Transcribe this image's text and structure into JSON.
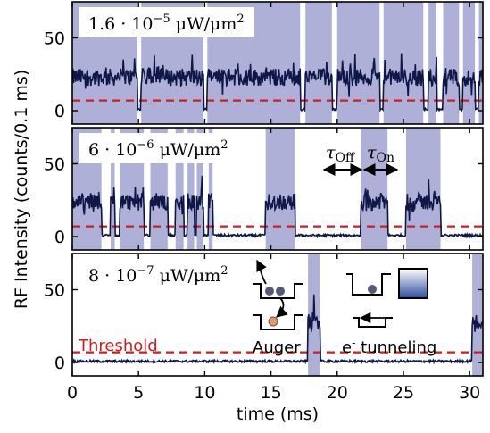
{
  "chart_data": {
    "type": "line",
    "xlabel": "time (ms)",
    "ylabel": "RF Intensity (counts/0.1 ms)",
    "xlim": [
      0,
      31
    ],
    "ylim": [
      0,
      60
    ],
    "xticks": [
      "0",
      "5",
      "10",
      "15",
      "20",
      "25",
      "30"
    ],
    "yticks": [
      "0",
      "50"
    ],
    "threshold": 7,
    "colors": {
      "trace": "#0f1748",
      "shade": "#aeb0d8",
      "threshold": "#cc1f1f",
      "dot_dark": "#555a7a",
      "dot_orange": "#e89a5c",
      "reservoir": "#2d4d9a"
    },
    "panels": [
      {
        "label_base": "1.6 · 10",
        "label_exp": "−5",
        "label_unit": " μW/μm",
        "label_unit_exp": "2",
        "on_segments": [
          [
            0.0,
            4.9
          ],
          [
            5.2,
            9.9
          ],
          [
            10.2,
            17.2
          ],
          [
            17.6,
            19.6
          ],
          [
            20.0,
            23.2
          ],
          [
            23.5,
            26.5
          ],
          [
            26.9,
            27.5
          ],
          [
            28.0,
            29.2
          ],
          [
            29.5,
            30.4
          ],
          [
            30.7,
            31.0
          ]
        ],
        "noise_level": 23,
        "noise_amp": 6
      },
      {
        "label_base": "6 · 10",
        "label_exp": "−6",
        "label_unit": " μW/μm",
        "label_unit_exp": "2",
        "on_segments": [
          [
            0.0,
            2.2
          ],
          [
            2.9,
            3.2
          ],
          [
            3.6,
            5.4
          ],
          [
            5.9,
            7.2
          ],
          [
            7.8,
            8.4
          ],
          [
            8.7,
            9.2
          ],
          [
            9.4,
            9.9
          ],
          [
            10.3,
            10.6
          ],
          [
            14.6,
            16.8
          ],
          [
            21.8,
            23.8
          ],
          [
            25.2,
            27.8
          ]
        ],
        "noise_level": 24,
        "noise_amp": 6
      },
      {
        "label_base": "8 · 10",
        "label_exp": "−7",
        "label_unit": " μW/μm",
        "label_unit_exp": "2",
        "on_segments": [
          [
            17.8,
            18.7
          ],
          [
            30.2,
            31.0
          ]
        ],
        "noise_level": 28,
        "noise_amp": 5
      }
    ],
    "annotations": {
      "tau_off": "τ",
      "tau_off_sub": "Off",
      "tau_on": "τ",
      "tau_on_sub": "On",
      "threshold_label": "Threshold",
      "auger_label": "Auger",
      "tunneling_label": "e",
      "tunneling_label_sup": "-",
      "tunneling_label_rest": " tunneling"
    }
  }
}
